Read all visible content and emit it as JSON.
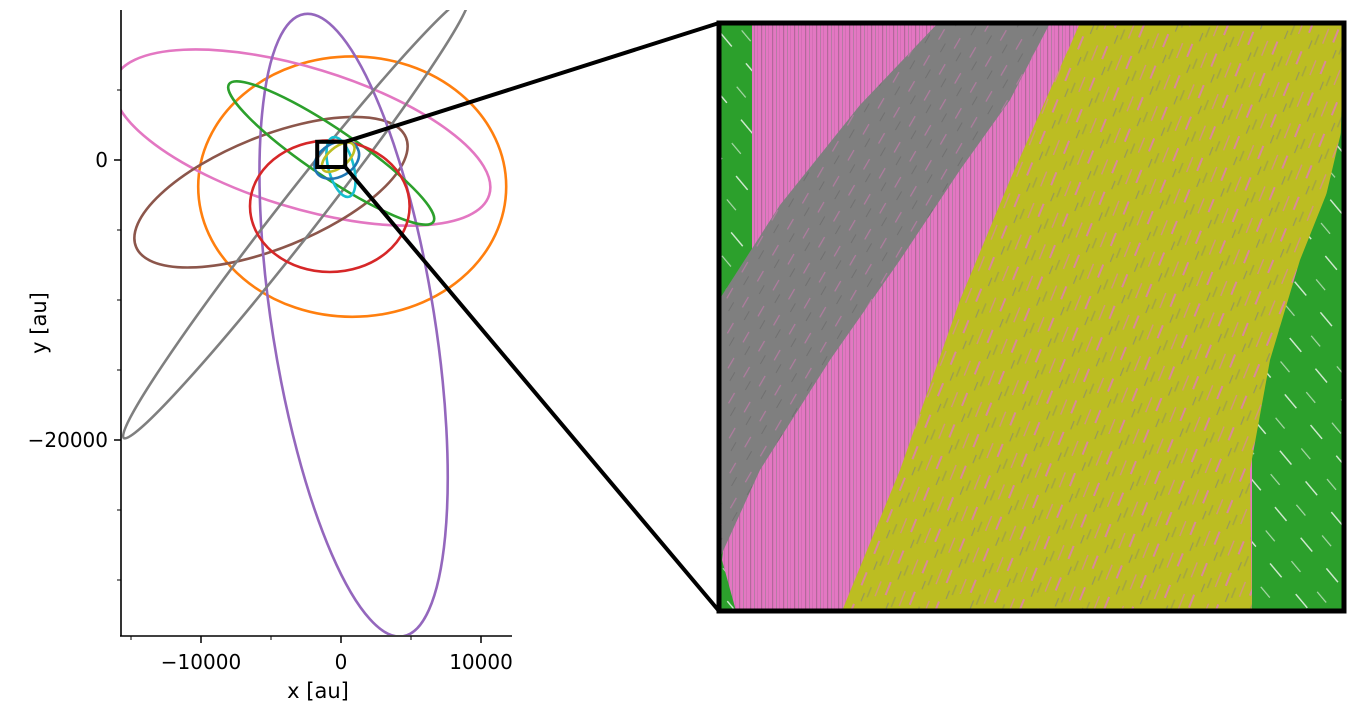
{
  "chart_data": {
    "type": "line",
    "title": "",
    "xlabel": "x [au]",
    "ylabel": "y [au]",
    "xlim": [
      -15800,
      12000
    ],
    "ylim": [
      -34000,
      10400
    ],
    "grid": false,
    "legend": "none",
    "x_ticks": [
      {
        "value": -10000,
        "label": "−10000"
      },
      {
        "value": 0,
        "label": "0"
      },
      {
        "value": 10000,
        "label": "10000"
      }
    ],
    "y_ticks": [
      {
        "value": 0,
        "label": "0"
      },
      {
        "value": -20000,
        "label": "−20000"
      }
    ],
    "orbits": [
      {
        "color": "#ff7f0e",
        "center": [
          800,
          -1900
        ],
        "semi_axes": [
          11000,
          9300
        ],
        "angle_deg": 0
      },
      {
        "color": "#e377c2",
        "center": [
          -2800,
          1600
        ],
        "semi_axes": [
          14000,
          5000
        ],
        "angle_deg": -17
      },
      {
        "color": "#8c564b",
        "center": [
          -5000,
          -2300
        ],
        "semi_axes": [
          10400,
          4000
        ],
        "angle_deg": 22
      },
      {
        "color": "#9467bd",
        "center": [
          900,
          -11800
        ],
        "semi_axes": [
          22500,
          5800
        ],
        "angle_deg": -81
      },
      {
        "color": "#7f7f7f",
        "center": [
          -3200,
          -4100
        ],
        "semi_axes": [
          20000,
          1450
        ],
        "angle_deg": 52
      },
      {
        "color": "#2ca02c",
        "center": [
          -700,
          500
        ],
        "semi_axes": [
          8800,
          1700
        ],
        "angle_deg": -34
      },
      {
        "color": "#d62728",
        "center": [
          -800,
          -3300
        ],
        "semi_axes": [
          5700,
          4700
        ],
        "angle_deg": 0
      },
      {
        "color": "#17becf",
        "center": [
          0,
          -500
        ],
        "semi_axes": [
          2200,
          900
        ],
        "angle_deg": -75
      },
      {
        "color": "#1f77b4",
        "center": [
          -300,
          0
        ],
        "semi_axes": [
          1700,
          1200
        ],
        "angle_deg": 30
      },
      {
        "color": "#bcbd22",
        "center": [
          -200,
          200
        ],
        "semi_axes": [
          1400,
          700
        ],
        "angle_deg": 40
      }
    ],
    "zoom_box": {
      "x": [
        -1700,
        300
      ],
      "y": [
        -500,
        1300
      ]
    },
    "inset": {
      "colors": {
        "background": "#2ca02c",
        "pink": "#e377c2",
        "gray": "#7f7f7f",
        "olive": "#bcbd22"
      }
    }
  }
}
